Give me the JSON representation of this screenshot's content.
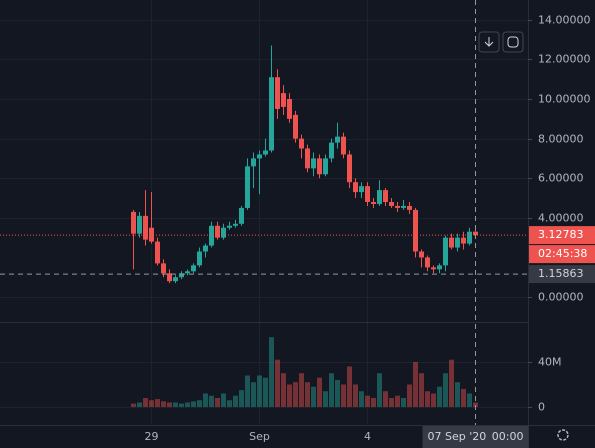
{
  "chart_data": [
    {
      "type": "candlestick",
      "categories": [
        null,
        null,
        null,
        "29",
        null,
        null,
        null,
        null,
        null,
        null,
        null,
        null,
        null,
        null,
        null,
        null,
        null,
        null,
        null,
        null,
        null,
        "Sep",
        null,
        null,
        null,
        null,
        null,
        null,
        null,
        null,
        null,
        null,
        null,
        null,
        null,
        null,
        null,
        null,
        null,
        "4",
        null,
        null,
        null,
        null,
        null,
        null,
        null,
        null,
        null,
        null,
        null,
        null,
        null,
        null,
        null,
        null,
        null,
        null
      ],
      "open": [
        4.3,
        3.2,
        4.1,
        3.5,
        2.8,
        1.7,
        1.2,
        0.8,
        1.0,
        1.2,
        1.3,
        1.6,
        2.3,
        2.6,
        3.6,
        3.0,
        3.5,
        3.6,
        3.7,
        4.5,
        6.6,
        7.0,
        7.2,
        7.4,
        11.1,
        10.3,
        10.0,
        9.2,
        8.0,
        7.5,
        6.5,
        7.0,
        6.2,
        7.0,
        7.8,
        8.1,
        7.2,
        5.8,
        5.3,
        5.6,
        4.8,
        4.7,
        5.4,
        4.8,
        4.6,
        4.5,
        4.6,
        4.4,
        2.3,
        2.0,
        1.5,
        1.4,
        1.6,
        3.0,
        2.5,
        3.0,
        2.7,
        3.3
      ],
      "high": [
        4.4,
        4.3,
        5.4,
        5.3,
        3.0,
        1.9,
        1.4,
        1.1,
        1.3,
        1.4,
        1.7,
        2.5,
        2.7,
        3.8,
        3.8,
        3.7,
        3.8,
        3.9,
        4.6,
        7.0,
        7.3,
        7.4,
        8.0,
        12.7,
        11.5,
        10.7,
        10.3,
        9.4,
        8.2,
        7.7,
        7.3,
        7.2,
        7.2,
        8.0,
        8.8,
        8.3,
        7.4,
        6.0,
        5.8,
        5.8,
        5.0,
        5.9,
        5.5,
        5.0,
        4.8,
        4.9,
        4.8,
        4.5,
        2.4,
        2.1,
        1.6,
        1.7,
        3.1,
        3.2,
        3.2,
        3.3,
        3.5,
        3.4
      ],
      "low": [
        1.4,
        3.0,
        2.6,
        2.7,
        1.6,
        1.0,
        0.7,
        0.7,
        0.9,
        1.1,
        1.2,
        1.5,
        2.0,
        2.5,
        2.9,
        2.9,
        3.4,
        3.5,
        3.6,
        4.4,
        5.5,
        5.2,
        7.1,
        7.3,
        9.0,
        9.2,
        8.8,
        7.8,
        7.0,
        6.3,
        6.1,
        6.0,
        6.1,
        6.8,
        7.5,
        7.0,
        5.5,
        5.0,
        5.0,
        4.6,
        4.5,
        4.6,
        4.6,
        4.5,
        4.3,
        4.4,
        4.2,
        2.0,
        1.5,
        1.3,
        1.2,
        1.2,
        1.3,
        2.4,
        2.3,
        2.4,
        2.6,
        3.0
      ],
      "close": [
        3.2,
        4.1,
        2.9,
        2.8,
        1.7,
        1.2,
        0.8,
        1.0,
        1.2,
        1.3,
        1.6,
        2.3,
        2.6,
        3.6,
        3.0,
        3.5,
        3.6,
        3.7,
        4.5,
        6.6,
        7.0,
        7.2,
        7.4,
        11.1,
        9.5,
        9.6,
        9.0,
        8.0,
        7.5,
        6.5,
        7.0,
        6.2,
        7.0,
        7.8,
        8.1,
        7.2,
        5.8,
        5.3,
        5.6,
        4.8,
        4.7,
        5.4,
        4.8,
        4.6,
        4.5,
        4.6,
        4.4,
        2.3,
        2.0,
        1.5,
        1.4,
        1.6,
        3.0,
        2.5,
        3.0,
        2.7,
        3.3,
        3.12783
      ],
      "up_color": "#26a69a",
      "down_color": "#ef5350",
      "ylim": [
        -1.26,
        15.0
      ],
      "yticks": [
        {
          "value": 0,
          "label": "0.00000"
        },
        {
          "value": 4,
          "label": "4.00000"
        },
        {
          "value": 6,
          "label": "6.00000"
        },
        {
          "value": 8,
          "label": "8.00000"
        },
        {
          "value": 10,
          "label": "10.00000"
        },
        {
          "value": 12,
          "label": "12.00000"
        },
        {
          "value": 14,
          "label": "14.00000"
        }
      ],
      "countdown": "02:45:38",
      "crosshair_price": 1.15863,
      "crosshair_date": "07 Sep '20",
      "crosshair_time": "00:00",
      "grid": true
    },
    {
      "type": "bar",
      "values": [
        3000000,
        4000000,
        8000000,
        6000000,
        7000000,
        5000000,
        4000000,
        4000000,
        3000000,
        4000000,
        5000000,
        6000000,
        12000000,
        10000000,
        8000000,
        12000000,
        6000000,
        10000000,
        15000000,
        28000000,
        22000000,
        28000000,
        26000000,
        62000000,
        42000000,
        30000000,
        20000000,
        22000000,
        30000000,
        22000000,
        18000000,
        26000000,
        14000000,
        30000000,
        24000000,
        20000000,
        36000000,
        20000000,
        14000000,
        10000000,
        8000000,
        30000000,
        14000000,
        8000000,
        10000000,
        8000000,
        20000000,
        40000000,
        30000000,
        14000000,
        12000000,
        18000000,
        30000000,
        42000000,
        22000000,
        16000000,
        12000000,
        4000000
      ],
      "ylim": [
        -16000000,
        75500000
      ],
      "yticks": [
        {
          "value": 0,
          "label": "0"
        },
        {
          "value": 40000000,
          "label": "40M"
        }
      ]
    }
  ]
}
